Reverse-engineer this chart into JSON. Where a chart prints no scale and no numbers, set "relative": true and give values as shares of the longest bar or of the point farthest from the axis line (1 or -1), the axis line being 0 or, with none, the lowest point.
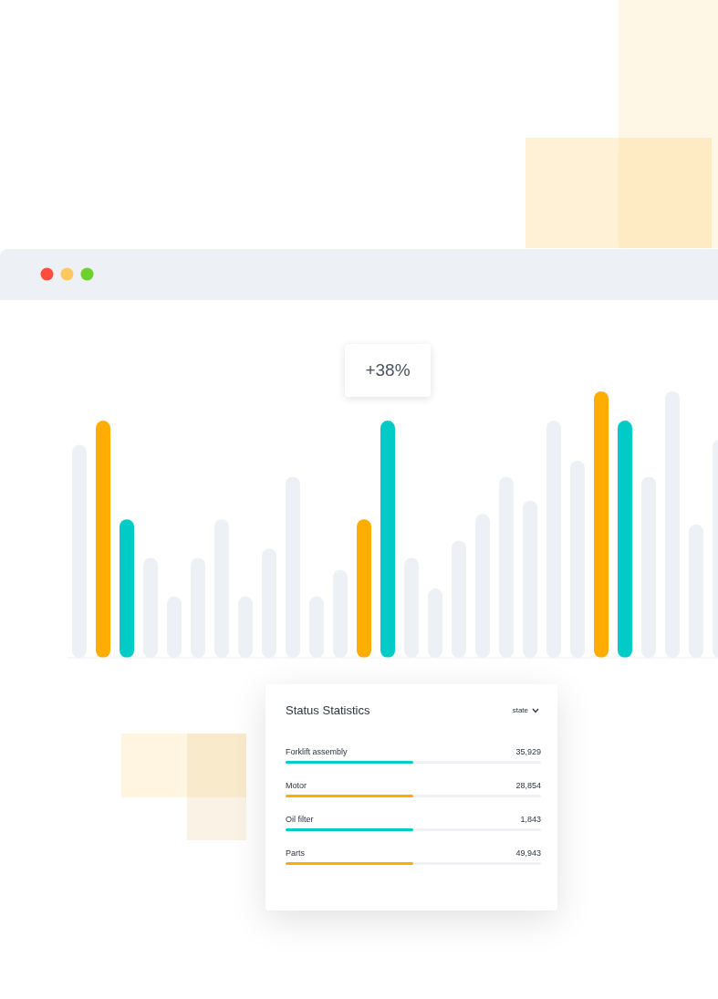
{
  "chart_data": [
    {
      "type": "bar",
      "relative": true,
      "categories": [
        null,
        null,
        null,
        null,
        null,
        null,
        null,
        null,
        null,
        null,
        null,
        null,
        null,
        null,
        null,
        null,
        null,
        null,
        null,
        null,
        null,
        null,
        null,
        null,
        null,
        null,
        null,
        null
      ],
      "values": [
        0.8,
        0.89,
        0.52,
        0.375,
        0.23,
        0.375,
        0.52,
        0.23,
        0.41,
        0.68,
        0.23,
        0.33,
        0.52,
        0.89,
        0.375,
        0.26,
        0.44,
        0.54,
        0.68,
        0.59,
        0.89,
        0.74,
        1,
        0.89,
        0.68,
        1,
        0.5,
        0.82
      ],
      "colors": [
        "#edf0f5",
        "#ffad00",
        "#00cbc6",
        "#edf0f5",
        "#edf0f5",
        "#edf0f5",
        "#edf0f5",
        "#edf0f5",
        "#edf0f5",
        "#edf0f5",
        "#edf0f5",
        "#edf0f5",
        "#ffad00",
        "#00cbc6",
        "#edf0f5",
        "#edf0f5",
        "#edf0f5",
        "#edf0f5",
        "#edf0f5",
        "#edf0f5",
        "#edf0f5",
        "#edf0f5",
        "#ffad00",
        "#00cbc6",
        "#edf0f5",
        "#edf0f5",
        "#edf0f5",
        "#edf0f5"
      ],
      "annotations": [
        "+38%"
      ]
    },
    {
      "type": "other",
      "title": "Status Statistics",
      "annotations": [
        "state"
      ],
      "categories": [
        "Forklift assembly",
        "Motor",
        "Oil filter",
        "Parts"
      ],
      "value_labels": [
        "35,929",
        "28,854",
        "1,843",
        "49,943"
      ]
    }
  ]
}
